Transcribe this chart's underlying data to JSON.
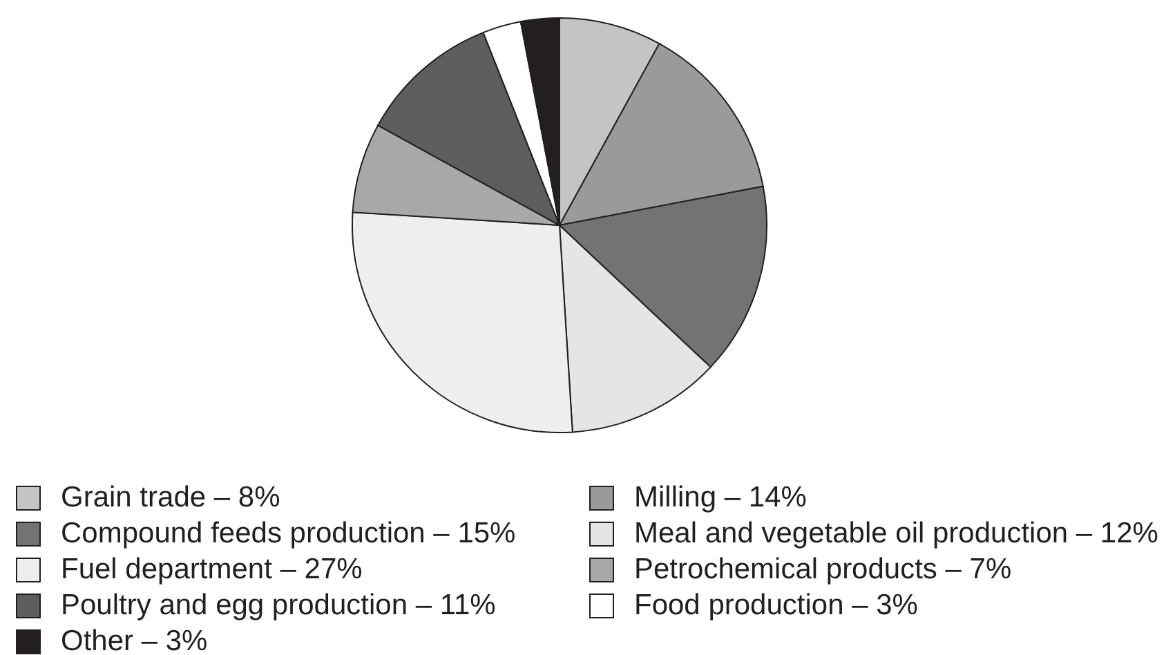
{
  "chart_data": {
    "type": "pie",
    "categories": [
      "Grain trade – 8%",
      "Milling – 14%",
      "Compound feeds production – 15%",
      "Meal and vegetable oil production – 12%",
      "Fuel department – 27%",
      "Petrochemical products – 7%",
      "Poultry and egg production – 11%",
      "Food production – 3%",
      "Other – 3%"
    ],
    "values": [
      8,
      14,
      15,
      12,
      27,
      7,
      11,
      3,
      3
    ],
    "colors": [
      "#c4c4c4",
      "#9a9a9a",
      "#737373",
      "#e4e5e7",
      "#eeeeee",
      "#a8a8a8",
      "#5e5e5e",
      "#ffffff",
      "#231f20"
    ],
    "legend": "bottom"
  }
}
